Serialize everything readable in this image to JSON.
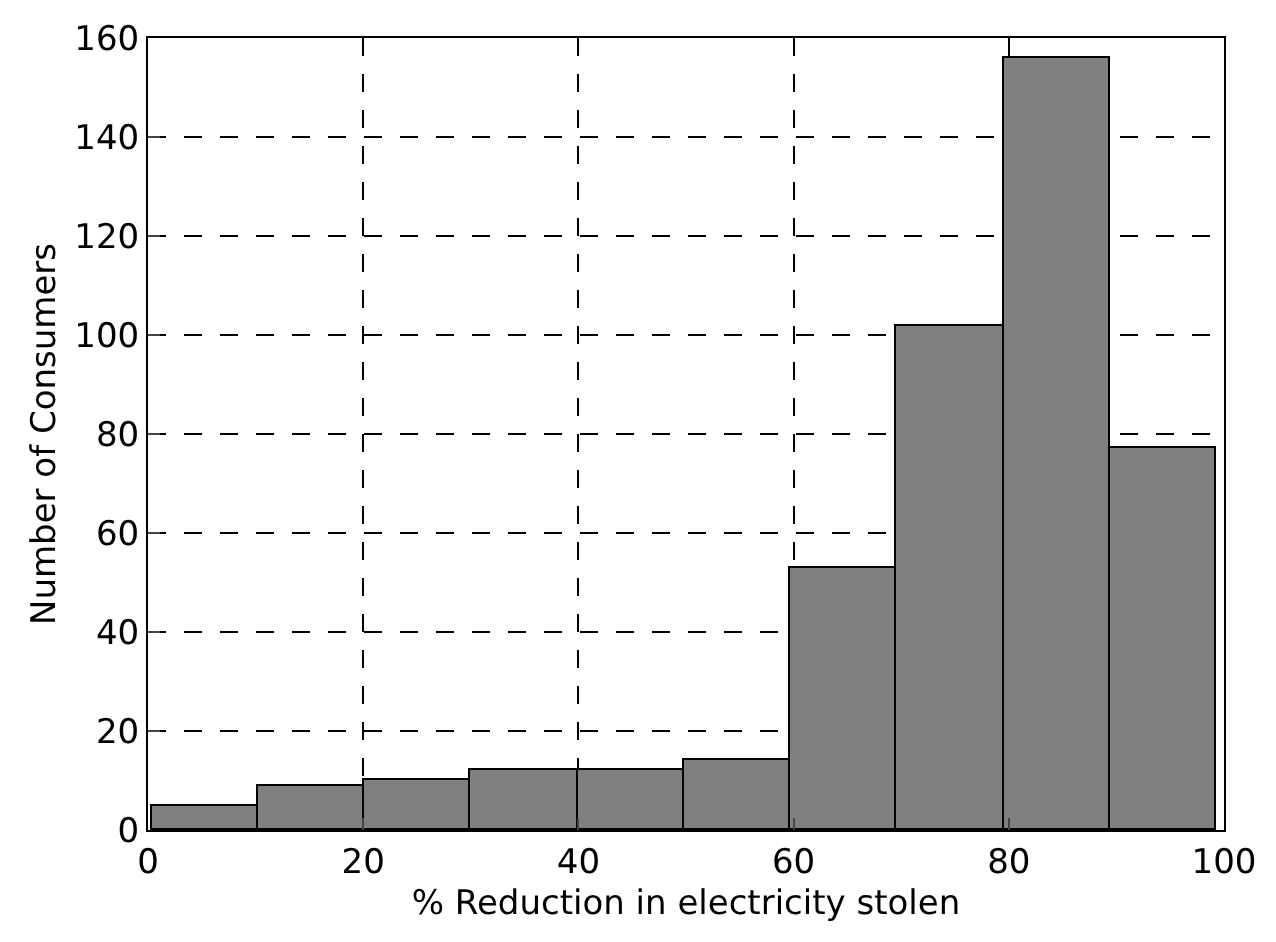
{
  "chart_data": {
    "type": "histogram",
    "xlabel": "% Reduction in electricity stolen",
    "ylabel": "Number of Consumers",
    "bins": [
      0.3,
      10.2,
      20.1,
      30.0,
      39.9,
      49.8,
      59.7,
      69.6,
      79.5,
      89.4,
      99.3
    ],
    "values": [
      5,
      9,
      10,
      12,
      12,
      14,
      53,
      102,
      156,
      77
    ],
    "color": "#808080",
    "xlim": [
      0,
      100
    ],
    "xticks": [
      0,
      20,
      40,
      60,
      80,
      100
    ],
    "ylim": [
      0,
      160
    ],
    "yticks": [
      0,
      20,
      40,
      60,
      80,
      100,
      120,
      140,
      160
    ],
    "grid": true
  }
}
